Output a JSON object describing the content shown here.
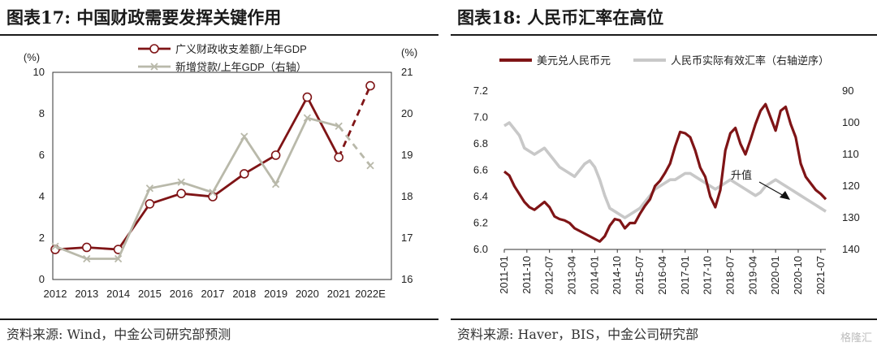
{
  "left": {
    "title": "图表17: 中国财政需要发挥关键作用",
    "source": "资料来源: Wind，中金公司研究部预测",
    "chart_data": {
      "type": "line",
      "categories": [
        "2012",
        "2013",
        "2014",
        "2015",
        "2016",
        "2017",
        "2018",
        "2019",
        "2020",
        "2021",
        "2022E"
      ],
      "y_left": {
        "unit": "(%)",
        "ylim": [
          0,
          10
        ],
        "ticks": [
          0,
          2,
          4,
          6,
          8,
          10
        ]
      },
      "y_right": {
        "unit": "(%)",
        "ylim": [
          16,
          21
        ],
        "ticks": [
          16,
          17,
          18,
          19,
          20,
          21
        ]
      },
      "legend_placement": "top-center",
      "series": [
        {
          "name": "广义财政收支差额/上年GDP",
          "axis": "left",
          "color": "#7f1416",
          "values": [
            1.45,
            1.55,
            1.45,
            3.65,
            4.15,
            4.0,
            5.1,
            6.0,
            8.8,
            5.9,
            9.35
          ],
          "forecast_from_index": 9
        },
        {
          "name": "新增贷款/上年GDP（右轴）",
          "axis": "right",
          "color": "#b9b9aa",
          "values": [
            16.8,
            16.5,
            16.5,
            18.2,
            18.35,
            18.1,
            19.45,
            18.3,
            19.9,
            19.7,
            18.75
          ],
          "forecast_from_index": 9
        }
      ]
    }
  },
  "right": {
    "title": "图表18: 人民币汇率在高位",
    "source": "资料来源: Haver，BIS，中金公司研究部",
    "annotation": "升值",
    "chart_data": {
      "type": "line",
      "x_ticks": [
        "2011-01",
        "2011-10",
        "2012-07",
        "2013-04",
        "2014-01",
        "2014-10",
        "2015-07",
        "2016-04",
        "2017-01",
        "2017-10",
        "2018-07",
        "2019-04",
        "2020-01",
        "2020-10",
        "2021-07"
      ],
      "y_left": {
        "ylim": [
          6.0,
          7.2
        ],
        "ticks": [
          6.0,
          6.2,
          6.4,
          6.6,
          6.8,
          7.0,
          7.2
        ]
      },
      "y_right": {
        "ylim": [
          140,
          90
        ],
        "ticks": [
          90,
          100,
          110,
          120,
          130,
          140
        ],
        "inverted": true
      },
      "legend_placement": "top-left",
      "series": [
        {
          "name": "美元兑人民币元",
          "axis": "left",
          "color": "#7f1416",
          "x": [
            0,
            2,
            4,
            6,
            8,
            10,
            12,
            14,
            16,
            18,
            20,
            22,
            24,
            26,
            28,
            30,
            32,
            34,
            36,
            38,
            40,
            42,
            44,
            46,
            48,
            50,
            52,
            54,
            56,
            58,
            60,
            62,
            64,
            66,
            68,
            70,
            72,
            74,
            76,
            78,
            80,
            82,
            84,
            86,
            88,
            90,
            92,
            94,
            96,
            98,
            100,
            102,
            104,
            106,
            108,
            110,
            112,
            114,
            116,
            118,
            120,
            122,
            124,
            126,
            128
          ],
          "values": [
            6.59,
            6.56,
            6.48,
            6.42,
            6.36,
            6.32,
            6.3,
            6.33,
            6.36,
            6.32,
            6.25,
            6.23,
            6.22,
            6.2,
            6.16,
            6.14,
            6.12,
            6.1,
            6.08,
            6.06,
            6.1,
            6.18,
            6.23,
            6.22,
            6.16,
            6.2,
            6.2,
            6.27,
            6.33,
            6.38,
            6.48,
            6.52,
            6.58,
            6.65,
            6.78,
            6.89,
            6.88,
            6.85,
            6.75,
            6.62,
            6.55,
            6.4,
            6.32,
            6.45,
            6.75,
            6.88,
            6.92,
            6.8,
            6.72,
            6.83,
            6.95,
            7.05,
            7.1,
            7.0,
            6.9,
            7.05,
            7.08,
            6.95,
            6.85,
            6.65,
            6.55,
            6.5,
            6.45,
            6.42,
            6.38
          ]
        },
        {
          "name": "人民币实际有效汇率（右轴逆序）",
          "axis": "right",
          "color": "#c8c8c8",
          "x": [
            0,
            2,
            4,
            6,
            8,
            10,
            12,
            14,
            16,
            18,
            20,
            22,
            24,
            26,
            28,
            30,
            32,
            34,
            36,
            38,
            40,
            42,
            44,
            46,
            48,
            50,
            52,
            54,
            56,
            58,
            60,
            62,
            64,
            66,
            68,
            70,
            72,
            74,
            76,
            78,
            80,
            82,
            84,
            86,
            88,
            90,
            92,
            94,
            96,
            98,
            100,
            102,
            104,
            106,
            108,
            110,
            112,
            114,
            116,
            118,
            120,
            122,
            124,
            126,
            128
          ],
          "values": [
            101,
            100,
            102,
            104,
            108,
            109,
            110,
            109,
            108,
            110,
            112,
            114,
            115,
            116,
            117,
            115,
            113,
            112,
            114,
            118,
            123,
            127,
            128,
            129,
            130,
            129,
            128,
            127,
            125,
            123,
            121,
            120,
            119,
            118,
            118,
            117,
            116,
            116,
            117,
            118,
            119,
            120,
            121,
            120,
            119,
            118,
            119,
            120,
            121,
            122,
            123,
            122,
            120,
            119,
            118,
            119,
            120,
            121,
            122,
            123,
            124,
            125,
            126,
            127,
            128
          ]
        }
      ]
    }
  },
  "watermark": "格隆汇"
}
